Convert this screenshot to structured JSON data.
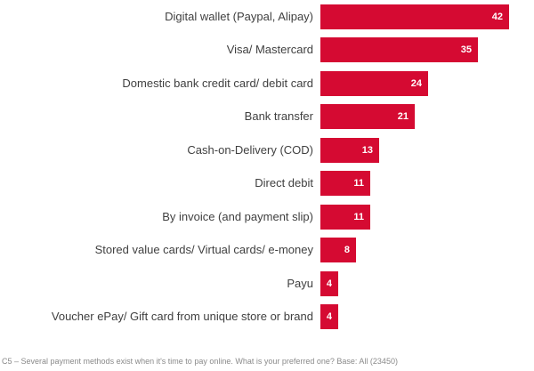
{
  "chart_data": {
    "type": "bar",
    "orientation": "horizontal",
    "title": "",
    "xlabel": "",
    "ylabel": "",
    "categories": [
      "Digital wallet (Paypal, Alipay)",
      "Visa/ Mastercard",
      "Domestic bank credit card/ debit card",
      "Bank transfer",
      "Cash-on-Delivery (COD)",
      "Direct debit",
      "By invoice (and payment slip)",
      "Stored value cards/ Virtual cards/ e-money",
      "Payu",
      "Voucher ePay/ Gift card from unique store or brand"
    ],
    "values": [
      42,
      35,
      24,
      21,
      13,
      11,
      11,
      8,
      4,
      4
    ],
    "xlim": [
      0,
      42
    ],
    "grid": false,
    "legend": false,
    "data_labels": "inside-end",
    "bar_color": "#D50A32",
    "value_label_color": "#FFFFFF",
    "category_label_color": "#404040"
  },
  "footnote": "C5 – Several payment methods exist when it's time to pay online. What is your preferred one? Base: All (23450)"
}
